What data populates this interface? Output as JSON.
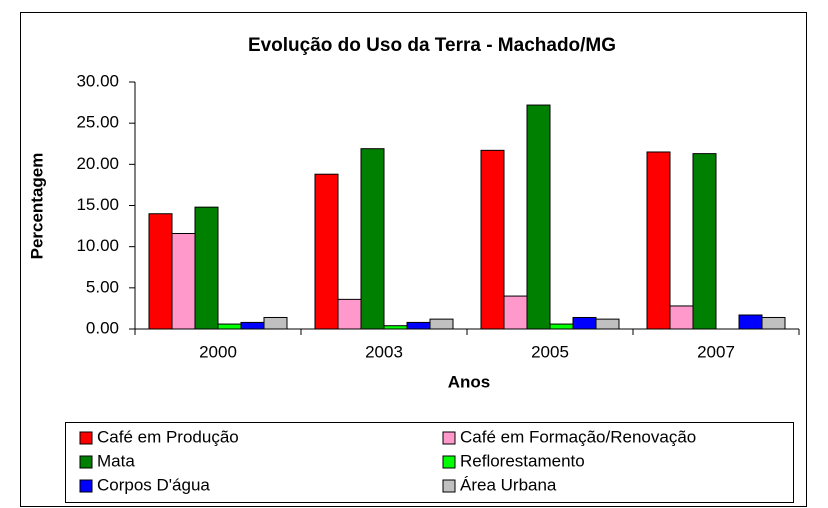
{
  "chart_data": {
    "type": "bar",
    "title": "Evolução do Uso da Terra - Machado/MG",
    "x_label": "Anos",
    "y_label": "Percentagem",
    "categories": [
      "2000",
      "2003",
      "2005",
      "2007"
    ],
    "series": [
      {
        "name": "Café em Produção",
        "color": "#ff0000",
        "values": [
          14.0,
          18.8,
          21.7,
          21.5
        ]
      },
      {
        "name": "Café em Formação/Renovação",
        "color": "#ff99cc",
        "values": [
          11.6,
          3.6,
          4.0,
          2.8
        ]
      },
      {
        "name": "Mata",
        "color": "#008000",
        "values": [
          14.8,
          21.9,
          27.2,
          21.3
        ]
      },
      {
        "name": "Reflorestamento",
        "color": "#00ff00",
        "values": [
          0.6,
          0.4,
          0.6,
          0
        ]
      },
      {
        "name": "Corpos D'água",
        "color": "#0000ff",
        "values": [
          0.8,
          0.8,
          1.4,
          1.7
        ]
      },
      {
        "name": "Área Urbana",
        "color": "#c0c0c0",
        "values": [
          1.4,
          1.2,
          1.2,
          1.4
        ]
      }
    ],
    "ylim": [
      0,
      30
    ],
    "yticks": [
      {
        "value": 0,
        "label": "0.00"
      },
      {
        "value": 5,
        "label": "5.00"
      },
      {
        "value": 10,
        "label": "10.00"
      },
      {
        "value": 15,
        "label": "15.00"
      },
      {
        "value": 20,
        "label": "20.00"
      },
      {
        "value": 25,
        "label": "25.00"
      },
      {
        "value": 30,
        "label": "30.00"
      }
    ],
    "grid": false,
    "legend": "bottom"
  }
}
